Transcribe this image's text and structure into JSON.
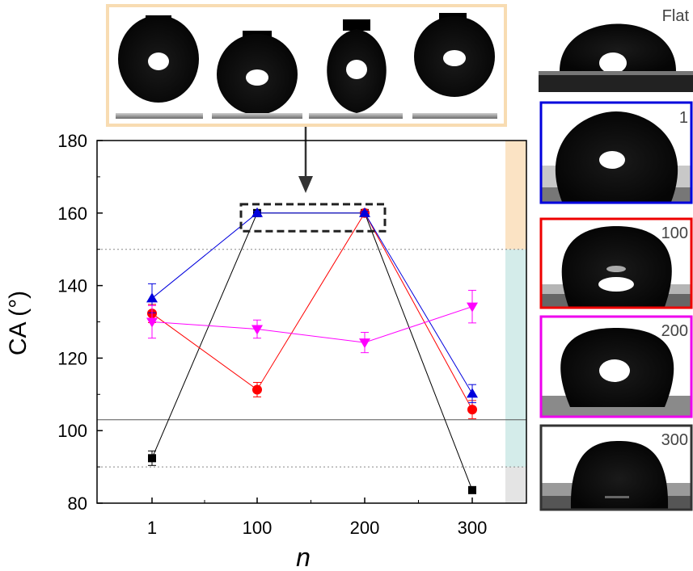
{
  "chart_data": {
    "type": "line",
    "title": "",
    "xlabel": "n",
    "ylabel": "CA (°)",
    "categories": [
      "1",
      "100",
      "200",
      "300"
    ],
    "ylim": [
      80,
      180
    ],
    "yticks": [
      80,
      100,
      120,
      140,
      160,
      180
    ],
    "reference_lines": [
      {
        "name": "flat-contact-angle-line",
        "y": 103,
        "style": "solid"
      },
      {
        "name": "superhydrophobic-threshold-line",
        "y": 150,
        "style": "dotted"
      },
      {
        "name": "hydrophobic-threshold-line",
        "y": 90,
        "style": "dotted"
      }
    ],
    "side_bands": [
      {
        "name": "superhydrophobic-band",
        "from": 150,
        "to": 180,
        "color": "#fbe3c4"
      },
      {
        "name": "hydrophobic-band",
        "from": 90,
        "to": 150,
        "color": "#d4ecea"
      },
      {
        "name": "hydrophilic-band",
        "from": 80,
        "to": 90,
        "color": "#e4e4e4"
      }
    ],
    "series": [
      {
        "name": "black-squares",
        "marker": "square",
        "color": "#000000",
        "values": [
          92.4,
          160,
          160,
          83.6
        ],
        "errors": [
          2,
          0.5,
          0.5,
          0.5
        ]
      },
      {
        "name": "red-circles",
        "marker": "circle",
        "color": "#ff0000",
        "values": [
          132.3,
          111.3,
          160,
          105.8
        ],
        "errors": [
          2.5,
          2,
          0.5,
          2.5
        ]
      },
      {
        "name": "blue-triangles-up",
        "marker": "triangle-up",
        "color": "#0000dd",
        "values": [
          136.5,
          160,
          160,
          110.2
        ],
        "errors": [
          4,
          0.5,
          0.5,
          2.5
        ]
      },
      {
        "name": "magenta-triangles-down",
        "marker": "triangle-down",
        "color": "#ff00ff",
        "values": [
          130,
          128,
          124.3,
          134.2
        ],
        "errors": [
          4.5,
          2.5,
          2.8,
          4.5
        ]
      }
    ],
    "highlight": {
      "categories": [
        "100",
        "200"
      ],
      "y_range": [
        155,
        162
      ]
    }
  },
  "inset_photos": {
    "top_count": 4,
    "side_labels": [
      "Flat",
      "1",
      "100",
      "200",
      "300"
    ],
    "side_border_colors": [
      "#ffffff",
      "#0000dd",
      "#ee0000",
      "#ee00ee",
      "#333333"
    ]
  }
}
